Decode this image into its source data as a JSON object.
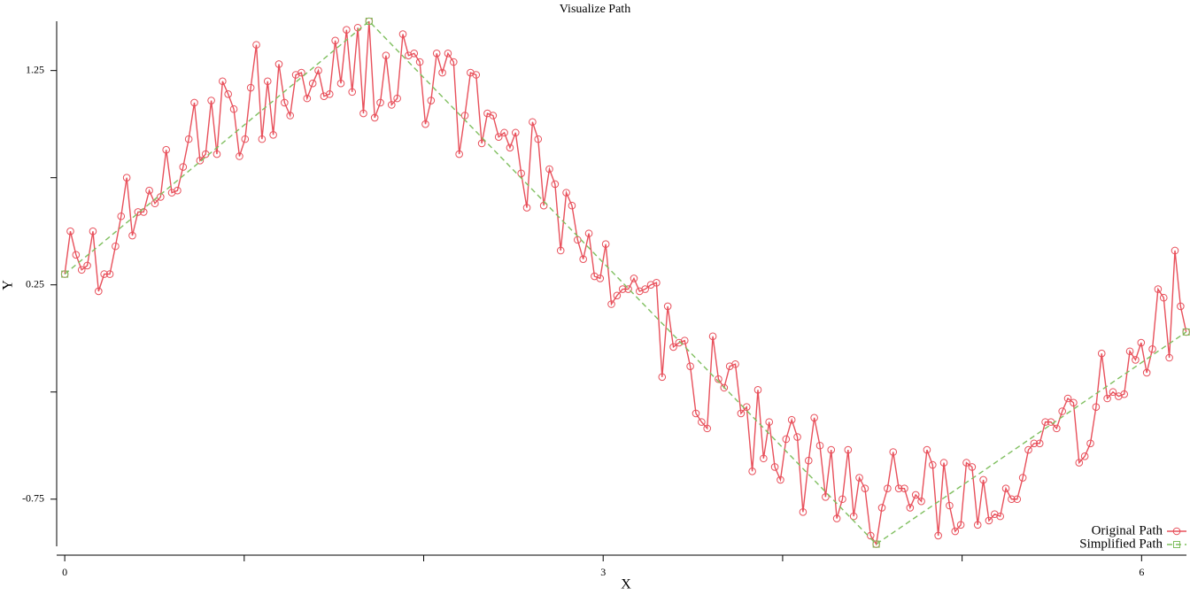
{
  "chart_data": {
    "type": "line",
    "title": "Visualize Path",
    "x_label": "X",
    "y_label": "Y",
    "xlim": [
      -0.045,
      6.25
    ],
    "ylim": [
      -0.97,
      1.48
    ],
    "xticks": [
      0,
      3,
      6
    ],
    "xminor_ticks": [
      1,
      2,
      4,
      5
    ],
    "yticks": [
      -0.75,
      0.25,
      1.25
    ],
    "yminor_ticks": [
      -0.25,
      0.75
    ],
    "grid": false,
    "legend": "lower right",
    "series": [
      {
        "name": "Original Path",
        "color": "#e8505b",
        "marker": "circle",
        "dashed": false,
        "x": [
          0,
          0.0314,
          0.0628,
          0.0942,
          0.1256,
          0.157,
          0.1884,
          0.2198,
          0.2512,
          0.2826,
          0.314,
          0.3454,
          0.3768,
          0.4082,
          0.4396,
          0.471,
          0.5024,
          0.5338,
          0.5652,
          0.5966,
          0.628,
          0.6594,
          0.6908,
          0.7222,
          0.7536,
          0.785,
          0.8164,
          0.8478,
          0.8792,
          0.9106,
          0.942,
          0.9734,
          1.0048,
          1.0362,
          1.0676,
          1.099,
          1.1304,
          1.1618,
          1.1932,
          1.2246,
          1.256,
          1.2874,
          1.3188,
          1.3502,
          1.3816,
          1.413,
          1.4444,
          1.4758,
          1.5072,
          1.5386,
          1.57,
          1.6014,
          1.6328,
          1.6642,
          1.6956,
          1.727,
          1.7584,
          1.7898,
          1.8212,
          1.8526,
          1.884,
          1.9154,
          1.9468,
          1.9782,
          2.0096,
          2.041,
          2.0724,
          2.1038,
          2.1352,
          2.1666,
          2.198,
          2.2294,
          2.2608,
          2.2922,
          2.3236,
          2.355,
          2.3864,
          2.4178,
          2.4492,
          2.4806,
          2.512,
          2.5434,
          2.5748,
          2.6062,
          2.6376,
          2.669,
          2.7004,
          2.7318,
          2.7632,
          2.7946,
          2.826,
          2.8574,
          2.8888,
          2.9202,
          2.9516,
          2.983,
          3.0144,
          3.0458,
          3.0772,
          3.1086,
          3.14,
          3.1714,
          3.2028,
          3.2342,
          3.2656,
          3.297,
          3.3284,
          3.3598,
          3.3912,
          3.4226,
          3.454,
          3.4854,
          3.5168,
          3.5482,
          3.5796,
          3.611,
          3.6424,
          3.6738,
          3.7052,
          3.7366,
          3.768,
          3.7994,
          3.8308,
          3.8622,
          3.8936,
          3.925,
          3.9564,
          3.9878,
          4.0192,
          4.0506,
          4.082,
          4.1134,
          4.1448,
          4.1762,
          4.2076,
          4.239,
          4.2704,
          4.3018,
          4.3332,
          4.3646,
          4.396,
          4.4274,
          4.4588,
          4.4902,
          4.5216,
          4.553,
          4.5844,
          4.6158,
          4.6472,
          4.6786,
          4.71,
          4.7414,
          4.7728,
          4.8042,
          4.8356,
          4.867,
          4.8984,
          4.9298,
          4.9612,
          4.9926,
          5.024,
          5.0554,
          5.0868,
          5.1182,
          5.1496,
          5.181,
          5.2124,
          5.2438,
          5.2752,
          5.3066,
          5.338,
          5.3694,
          5.4008,
          5.4322,
          5.4636,
          5.495,
          5.5264,
          5.5578,
          5.5892,
          5.6206,
          5.652,
          5.6834,
          5.7148,
          5.7462,
          5.7776,
          5.809,
          5.8404,
          5.8718,
          5.9032,
          5.9346,
          5.966,
          5.9974,
          6.0288,
          6.0602,
          6.0916,
          6.123,
          6.1544,
          6.1858,
          6.2172,
          6.2486
        ],
        "values": [
          0.3,
          0.5,
          0.39,
          0.32,
          0.34,
          0.5,
          0.22,
          0.3,
          0.3,
          0.43,
          0.57,
          0.75,
          0.48,
          0.59,
          0.59,
          0.69,
          0.63,
          0.66,
          0.88,
          0.68,
          0.69,
          0.8,
          0.93,
          1.1,
          0.83,
          0.86,
          1.11,
          0.86,
          1.2,
          1.14,
          1.07,
          0.85,
          0.93,
          1.17,
          1.37,
          0.93,
          1.2,
          0.95,
          1.28,
          1.1,
          1.04,
          1.23,
          1.24,
          1.12,
          1.19,
          1.25,
          1.13,
          1.14,
          1.39,
          1.19,
          1.44,
          1.15,
          1.45,
          1.05,
          1.48,
          1.03,
          1.1,
          1.32,
          1.09,
          1.12,
          1.42,
          1.32,
          1.33,
          1.29,
          1.0,
          1.11,
          1.33,
          1.24,
          1.33,
          1.29,
          0.86,
          1.04,
          1.24,
          1.23,
          0.91,
          1.05,
          1.04,
          0.94,
          0.96,
          0.89,
          0.96,
          0.77,
          0.61,
          1.01,
          0.93,
          0.62,
          0.79,
          0.72,
          0.41,
          0.68,
          0.62,
          0.46,
          0.37,
          0.49,
          0.29,
          0.28,
          0.44,
          0.16,
          0.2,
          0.23,
          0.23,
          0.28,
          0.22,
          0.23,
          0.25,
          0.26,
          -0.18,
          0.15,
          -0.04,
          -0.02,
          -0.01,
          -0.13,
          -0.35,
          -0.39,
          -0.42,
          0.01,
          -0.19,
          -0.23,
          -0.13,
          -0.12,
          -0.35,
          -0.32,
          -0.62,
          -0.24,
          -0.56,
          -0.39,
          -0.6,
          -0.66,
          -0.47,
          -0.38,
          -0.46,
          -0.81,
          -0.57,
          -0.37,
          -0.5,
          -0.74,
          -0.52,
          -0.84,
          -0.75,
          -0.52,
          -0.83,
          -0.65,
          -0.7,
          -0.92,
          -0.96,
          -0.79,
          -0.7,
          -0.53,
          -0.7,
          -0.7,
          -0.79,
          -0.73,
          -0.76,
          -0.52,
          -0.59,
          -0.92,
          -0.58,
          -0.78,
          -0.9,
          -0.87,
          -0.58,
          -0.6,
          -0.87,
          -0.66,
          -0.85,
          -0.82,
          -0.83,
          -0.7,
          -0.75,
          -0.75,
          -0.65,
          -0.52,
          -0.49,
          -0.49,
          -0.39,
          -0.39,
          -0.42,
          -0.34,
          -0.28,
          -0.3,
          -0.58,
          -0.55,
          -0.49,
          -0.32,
          -0.07,
          -0.28,
          -0.25,
          -0.27,
          -0.26,
          -0.06,
          -0.1,
          -0.02,
          -0.16,
          -0.05,
          0.23,
          0.19,
          -0.09,
          0.41,
          0.15,
          0.03
        ]
      },
      {
        "name": "Simplified Path",
        "color": "#7fbf5f",
        "marker": "square",
        "dashed": true,
        "x": [
          0,
          1.6956,
          4.5216,
          6.2486
        ],
        "values": [
          0.3,
          1.48,
          -0.96,
          0.03
        ]
      }
    ]
  }
}
